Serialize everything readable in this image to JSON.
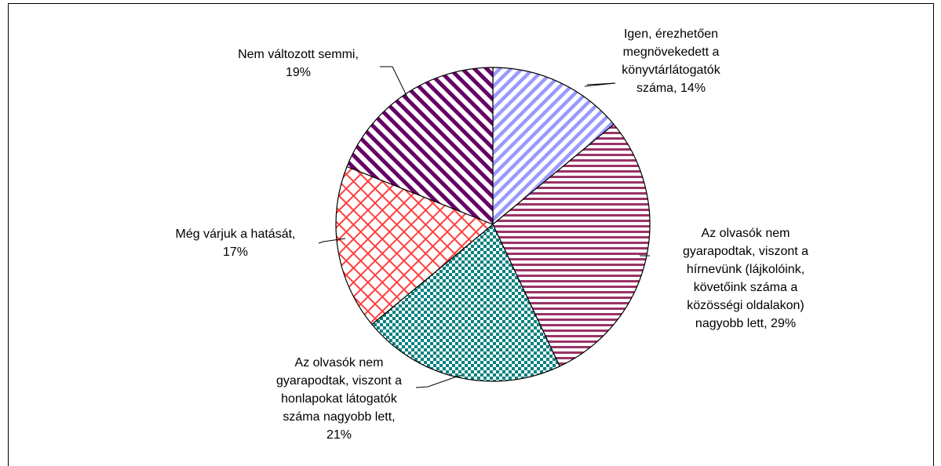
{
  "chart_data": {
    "type": "pie",
    "categories": [
      "Igen, érezhetően megnövekedett a könyvtárlátogatók száma,",
      "Az olvasók nem gyarapodtak, viszont a hírnevünk (lájkolóink, követőink száma a közösségi oldalakon) nagyobb lett,",
      "Az olvasók nem gyarapodtak, viszont a honlapokat látogatók száma nagyobb lett,",
      "Még várjuk a hatását,",
      "Nem változott semmi,"
    ],
    "values": [
      14,
      29,
      21,
      17,
      19
    ],
    "value_labels": [
      "14%",
      "29%",
      "21%",
      "17%",
      "19%"
    ],
    "colors": [
      "#9999ff",
      "#993366",
      "#008080",
      "#ff4040",
      "#660066"
    ]
  }
}
